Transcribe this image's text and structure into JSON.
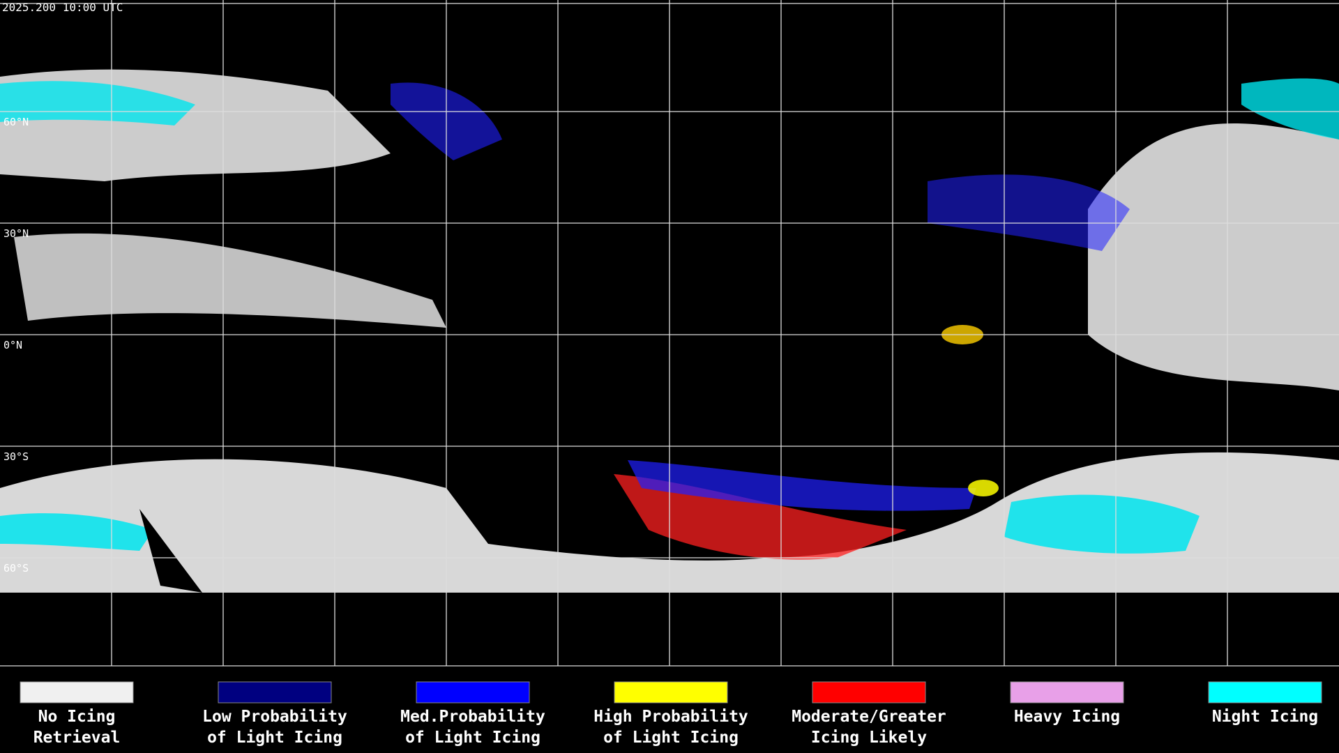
{
  "header": {
    "timestamp": "2025.200 10:00 UTC"
  },
  "map": {
    "lat_labels": [
      "60°N",
      "30°N",
      "0°N",
      "30°S",
      "60°S"
    ]
  },
  "legend": {
    "items": [
      {
        "lines": [
          "No Icing",
          "Retrieval"
        ],
        "color": "#f0f0f0"
      },
      {
        "lines": [
          "Low Probability",
          "of Light Icing"
        ],
        "color": "#000080"
      },
      {
        "lines": [
          "Med.Probability",
          "of Light Icing"
        ],
        "color": "#0000ff"
      },
      {
        "lines": [
          "High Probability",
          "of Light Icing"
        ],
        "color": "#ffff00"
      },
      {
        "lines": [
          "Moderate/Greater",
          "Icing Likely"
        ],
        "color": "#ff0000"
      },
      {
        "lines": [
          "Heavy Icing"
        ],
        "color": "#e8a0e8"
      },
      {
        "lines": [
          "Night Icing"
        ],
        "color": "#00ffff"
      }
    ]
  }
}
